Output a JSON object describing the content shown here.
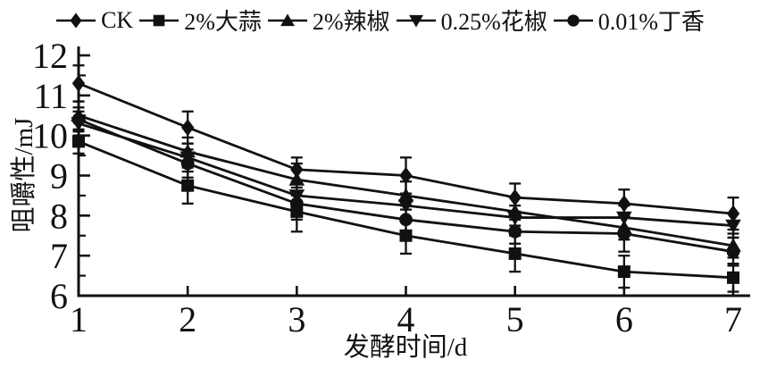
{
  "figure": {
    "background": "#ffffff",
    "ink_color": "#111111"
  },
  "chart_data": {
    "type": "line",
    "title": "",
    "xlabel": "发酵时间/d",
    "ylabel": "咀嚼性/mJ",
    "x": [
      1,
      2,
      3,
      4,
      5,
      6,
      7
    ],
    "xlim": [
      1,
      7
    ],
    "ylim": [
      6,
      12
    ],
    "yticks": [
      6,
      7,
      8,
      9,
      10,
      11,
      12
    ],
    "y_minor_step": 0.5,
    "grid": false,
    "legend_position": "top",
    "error_bars": true,
    "series": [
      {
        "name": "CK",
        "marker": "diamond",
        "values": [
          11.3,
          10.2,
          9.15,
          9.0,
          8.45,
          8.3,
          8.05
        ],
        "errors": [
          0.45,
          0.4,
          0.3,
          0.45,
          0.35,
          0.35,
          0.4
        ]
      },
      {
        "name": "2%大蒜",
        "marker": "square",
        "values": [
          9.85,
          8.75,
          8.1,
          7.5,
          7.05,
          6.6,
          6.45
        ],
        "errors": [
          0.3,
          0.45,
          0.5,
          0.45,
          0.45,
          0.4,
          0.35
        ]
      },
      {
        "name": "2%辣椒",
        "marker": "triangle-up",
        "values": [
          10.5,
          9.6,
          8.9,
          8.5,
          8.1,
          7.7,
          7.25
        ],
        "errors": [
          0.35,
          0.35,
          0.4,
          0.35,
          0.35,
          0.3,
          0.3
        ]
      },
      {
        "name": "0.25%花椒",
        "marker": "triangle-down",
        "values": [
          10.3,
          9.45,
          8.5,
          8.25,
          7.95,
          7.95,
          7.75
        ],
        "errors": [
          0.3,
          0.35,
          0.35,
          0.3,
          0.3,
          0.3,
          0.3
        ]
      },
      {
        "name": "0.01%丁香",
        "marker": "circle",
        "values": [
          10.4,
          9.3,
          8.3,
          7.9,
          7.6,
          7.55,
          7.1
        ],
        "errors": [
          0.3,
          0.35,
          0.4,
          0.35,
          0.3,
          0.45,
          0.35
        ]
      }
    ]
  }
}
